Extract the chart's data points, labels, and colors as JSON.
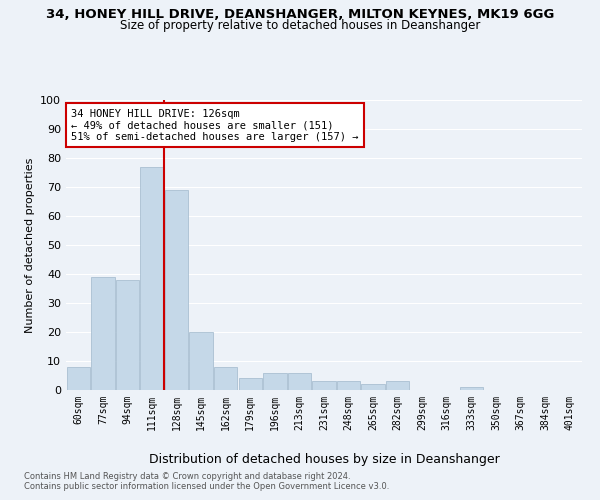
{
  "title1": "34, HONEY HILL DRIVE, DEANSHANGER, MILTON KEYNES, MK19 6GG",
  "title2": "Size of property relative to detached houses in Deanshanger",
  "xlabel": "Distribution of detached houses by size in Deanshanger",
  "ylabel": "Number of detached properties",
  "footnote1": "Contains HM Land Registry data © Crown copyright and database right 2024.",
  "footnote2": "Contains public sector information licensed under the Open Government Licence v3.0.",
  "categories": [
    "60sqm",
    "77sqm",
    "94sqm",
    "111sqm",
    "128sqm",
    "145sqm",
    "162sqm",
    "179sqm",
    "196sqm",
    "213sqm",
    "231sqm",
    "248sqm",
    "265sqm",
    "282sqm",
    "299sqm",
    "316sqm",
    "333sqm",
    "350sqm",
    "367sqm",
    "384sqm",
    "401sqm"
  ],
  "values": [
    8,
    39,
    38,
    77,
    69,
    20,
    8,
    4,
    6,
    6,
    3,
    3,
    2,
    3,
    0,
    0,
    1,
    0,
    0,
    0,
    0
  ],
  "bar_color": "#c5d8e8",
  "bar_edge_color": "#a0b8cc",
  "vline_color": "#cc0000",
  "annotation_box_text": "34 HONEY HILL DRIVE: 126sqm\n← 49% of detached houses are smaller (151)\n51% of semi-detached houses are larger (157) →",
  "annotation_box_color": "#cc0000",
  "annotation_box_fill": "#ffffff",
  "ylim": [
    0,
    100
  ],
  "yticks": [
    0,
    10,
    20,
    30,
    40,
    50,
    60,
    70,
    80,
    90,
    100
  ],
  "bg_color": "#edf2f8",
  "plot_bg_color": "#edf2f8",
  "title1_fontsize": 9.5,
  "title2_fontsize": 8.5,
  "xlabel_fontsize": 9,
  "ylabel_fontsize": 8
}
